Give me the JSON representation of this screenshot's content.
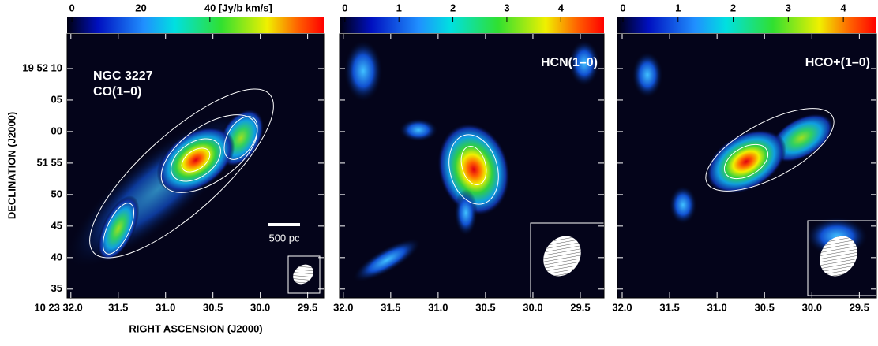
{
  "chart_data": [
    {
      "type": "map",
      "labels": [
        "NGC 3227",
        "CO(1–0)"
      ],
      "scale_bar": "500 pc",
      "xlabel": "RIGHT ASCENSION (J2000)",
      "ylabel": "DECLINATION (J2000)",
      "colorbar_lim": [
        -1.4,
        73
      ],
      "colorbar_ticks": [
        0,
        20,
        {
          "value": 40,
          "label": "40 [Jy/b km/s]"
        }
      ],
      "xlim": [
        32.04,
        29.33
      ],
      "xticks": [
        {
          "value": 32,
          "label": "10 23 32.0"
        },
        31.5,
        {
          "value": 31,
          "label": "31.0"
        },
        30.5,
        {
          "value": 30,
          "label": "30.0"
        },
        29.5
      ],
      "ylim": [
        33.6,
        75.5
      ],
      "yticks": [
        {
          "value": 70,
          "label": "19 52 10"
        },
        {
          "value": 65,
          "label": "05"
        },
        {
          "value": 60,
          "label": "00"
        },
        {
          "value": 55,
          "label": "51 55"
        },
        50,
        45,
        40,
        35
      ]
    },
    {
      "type": "map",
      "labels": [
        "HCN(1–0)"
      ],
      "colorbar_lim": [
        -0.1,
        4.8
      ],
      "colorbar_ticks": [
        0,
        1,
        2,
        3,
        4
      ],
      "xlim": [
        32.04,
        29.25
      ],
      "xticks": [
        {
          "value": 32,
          "label": "32.0"
        },
        31.5,
        {
          "value": 31,
          "label": "31.0"
        },
        30.5,
        {
          "value": 30,
          "label": "30.0"
        },
        29.5
      ],
      "ylim": [
        33.6,
        75.5
      ],
      "yticks": [
        70,
        65,
        60,
        55,
        50,
        45,
        40,
        35
      ]
    },
    {
      "type": "map",
      "labels": [
        "HCO+(1–0)"
      ],
      "colorbar_lim": [
        -0.1,
        4.6
      ],
      "colorbar_ticks": [
        0,
        1,
        2,
        3,
        4
      ],
      "xlim": [
        32.05,
        29.32
      ],
      "xticks": [
        {
          "value": 32,
          "label": "32.0"
        },
        31.5,
        {
          "value": 31,
          "label": "31.0"
        },
        30.5,
        {
          "value": 30,
          "label": "30.0"
        },
        29.5
      ],
      "ylim": [
        33.6,
        75.5
      ],
      "yticks": [
        70,
        65,
        60,
        55,
        50,
        45,
        40,
        35
      ]
    }
  ]
}
